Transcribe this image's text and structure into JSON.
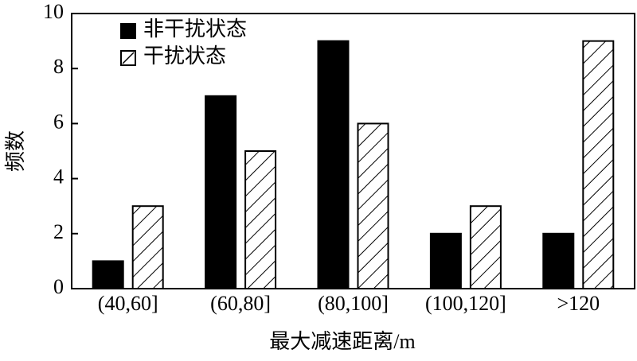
{
  "chart_data": {
    "type": "bar",
    "x_label": "最大减速距离/m",
    "y_label": "频数",
    "categories": [
      "(40,60]",
      "(60,80]",
      "(80,100]",
      "(100,120]",
      ">120"
    ],
    "series": [
      {
        "name": "非干扰状态",
        "color": "#000000",
        "hatch": false,
        "values": [
          1,
          7,
          9,
          2,
          2
        ]
      },
      {
        "name": "干扰状态",
        "color": "#ffffff",
        "hatch": true,
        "values": [
          3,
          5,
          6,
          3,
          9
        ]
      }
    ],
    "ylim": [
      0,
      10
    ],
    "yticks": [
      0,
      2,
      4,
      6,
      8,
      10
    ],
    "grid": false,
    "legend": "upper left"
  }
}
